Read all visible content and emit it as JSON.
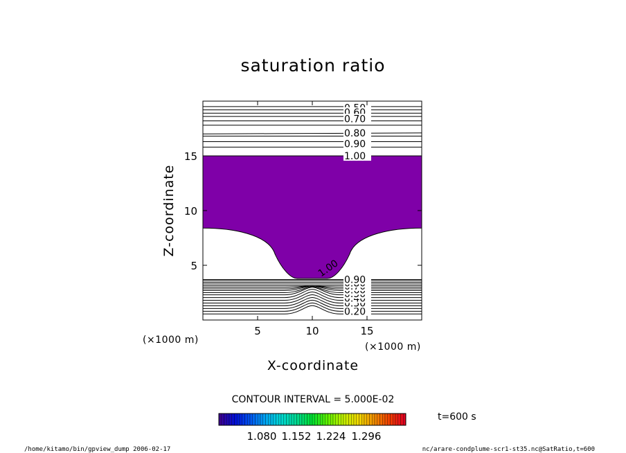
{
  "chart_data": {
    "type": "contour",
    "title": "saturation ratio",
    "xlabel": "X-coordinate",
    "ylabel": "Z-coordinate",
    "x_unit": "(×1000 m)",
    "y_unit": "(×1000 m)",
    "xlim": [
      0,
      20
    ],
    "ylim": [
      0,
      20
    ],
    "x_ticks": [
      5,
      10,
      15
    ],
    "y_ticks": [
      5,
      10,
      15
    ],
    "x_tick_labels": [
      "5",
      "10",
      "15"
    ],
    "y_tick_labels": [
      "5",
      "10",
      "15"
    ],
    "upper_contour_levels": [
      0.5,
      0.55,
      0.6,
      0.65,
      0.7,
      0.75,
      0.8,
      0.85,
      0.9,
      0.95,
      1.0
    ],
    "upper_contour_labels": [
      "0.50",
      "0.60",
      "0.70",
      "0.80",
      "0.90",
      "1.00"
    ],
    "lower_contour_labels": [
      "0.20",
      "0.30",
      "0.40",
      "0.50",
      "0.60",
      "0.70",
      "0.80",
      "0.90"
    ],
    "region_label": "1.00",
    "shaded_region": {
      "description_free": true,
      "top_z": 15.0,
      "side_bottom_z": 8.4,
      "trough_bottom_z": 3.8,
      "trough_x_range": [
        8.0,
        12.0
      ],
      "color": "#7f00a8"
    },
    "contour_interval_label": "CONTOUR INTERVAL = 5.000E-02",
    "colorbar_ticks": [
      "1.080",
      "1.152",
      "1.224",
      "1.296"
    ],
    "colorbar_colors": [
      "#3a0090",
      "#0010d8",
      "#0058f0",
      "#00a8f0",
      "#00d8d0",
      "#00d890",
      "#00e030",
      "#60f000",
      "#c0f000",
      "#f0d800",
      "#f09000",
      "#f04000",
      "#e00020"
    ]
  },
  "time_label": "t=600 s",
  "footer_left": "/home/kitamo/bin/gpview_dump  2006-02-17",
  "footer_right": "nc/arare-condplume-scr1-st35.nc@SatRatio,t=600"
}
